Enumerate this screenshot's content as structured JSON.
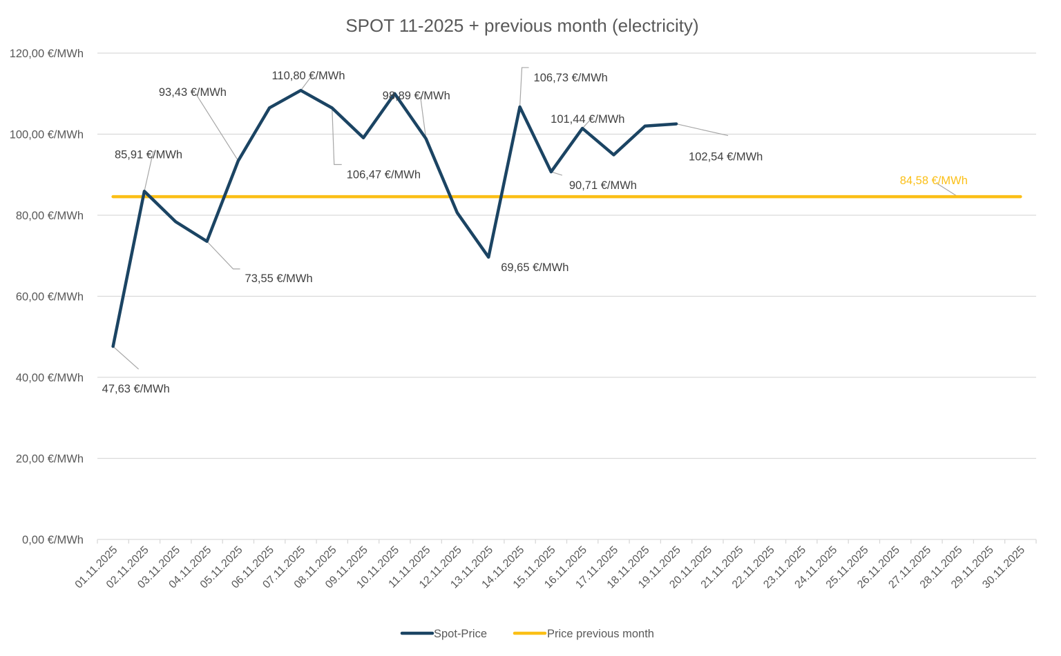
{
  "chart_data": {
    "type": "line",
    "title": "SPOT 11-2025 + previous month (electricity)",
    "xlabel": "",
    "ylabel": "",
    "unit": "€/MWh",
    "ylim": [
      0,
      120
    ],
    "yticks": [
      0,
      20,
      40,
      60,
      80,
      100,
      120
    ],
    "ytick_labels": [
      "0,00 €/MWh",
      "20,00 €/MWh",
      "40,00 €/MWh",
      "60,00 €/MWh",
      "80,00 €/MWh",
      "100,00 €/MWh",
      "120,00 €/MWh"
    ],
    "grid": true,
    "legend_position": "bottom",
    "categories": [
      "01.11.2025",
      "02.11.2025",
      "03.11.2025",
      "04.11.2025",
      "05.11.2025",
      "06.11.2025",
      "07.11.2025",
      "08.11.2025",
      "09.11.2025",
      "10.11.2025",
      "11.11.2025",
      "12.11.2025",
      "13.11.2025",
      "14.11.2025",
      "15.11.2025",
      "16.11.2025",
      "17.11.2025",
      "18.11.2025",
      "19.11.2025",
      "20.11.2025",
      "21.11.2025",
      "22.11.2025",
      "23.11.2025",
      "24.11.2025",
      "25.11.2025",
      "26.11.2025",
      "27.11.2025",
      "28.11.2025",
      "29.11.2025",
      "30.11.2025"
    ],
    "series": [
      {
        "name": "Spot-Price",
        "color": "#1b4463",
        "values": [
          47.63,
          85.91,
          78.4,
          73.55,
          93.43,
          106.5,
          110.8,
          106.47,
          99.1,
          110.0,
          98.89,
          80.6,
          69.65,
          106.73,
          90.71,
          101.44,
          94.9,
          102.0,
          102.54,
          null,
          null,
          null,
          null,
          null,
          null,
          null,
          null,
          null,
          null,
          null
        ]
      },
      {
        "name": "Price previous month",
        "color": "#fbbf16",
        "values": [
          84.58,
          84.58,
          84.58,
          84.58,
          84.58,
          84.58,
          84.58,
          84.58,
          84.58,
          84.58,
          84.58,
          84.58,
          84.58,
          84.58,
          84.58,
          84.58,
          84.58,
          84.58,
          84.58,
          84.58,
          84.58,
          84.58,
          84.58,
          84.58,
          84.58,
          84.58,
          84.58,
          84.58,
          84.58,
          84.58
        ]
      }
    ],
    "data_labels": [
      {
        "series": 0,
        "index": 0,
        "text": "47,63 €/MWh"
      },
      {
        "series": 0,
        "index": 1,
        "text": "85,91 €/MWh"
      },
      {
        "series": 0,
        "index": 3,
        "text": "73,55 €/MWh"
      },
      {
        "series": 0,
        "index": 4,
        "text": "93,43 €/MWh"
      },
      {
        "series": 0,
        "index": 6,
        "text": "110,80 €/MWh"
      },
      {
        "series": 0,
        "index": 7,
        "text": "106,47 €/MWh"
      },
      {
        "series": 0,
        "index": 10,
        "text": "98,89 €/MWh"
      },
      {
        "series": 0,
        "index": 12,
        "text": "69,65 €/MWh"
      },
      {
        "series": 0,
        "index": 13,
        "text": "106,73 €/MWh"
      },
      {
        "series": 0,
        "index": 15,
        "text": "101,44 €/MWh"
      },
      {
        "series": 0,
        "index": 14,
        "text": "90,71 €/MWh"
      },
      {
        "series": 0,
        "index": 18,
        "text": "102,54 €/MWh"
      },
      {
        "series": 1,
        "index": 27,
        "text": "84,58 €/MWh"
      }
    ]
  }
}
